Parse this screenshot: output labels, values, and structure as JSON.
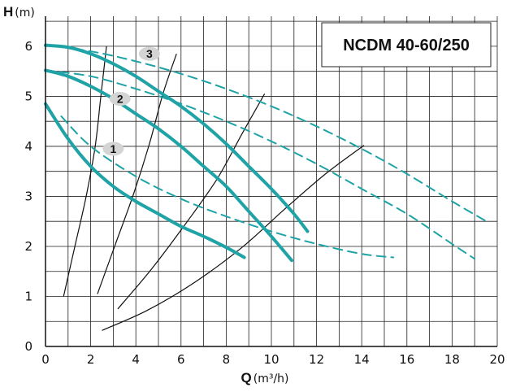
{
  "chart_data": {
    "type": "line",
    "title": "NCDM 40-60/250",
    "xaxis": {
      "letter": "Q",
      "unit": "(m³/h)",
      "range": [
        0,
        20
      ],
      "ticks": [
        "0",
        "2",
        "4",
        "6",
        "8",
        "10",
        "12",
        "14",
        "16",
        "18",
        "20"
      ]
    },
    "yaxis": {
      "letter": "H",
      "unit": "(m)",
      "range": [
        0,
        6.6
      ],
      "ticks": [
        "0",
        "1",
        "2",
        "3",
        "4",
        "5",
        "6"
      ]
    },
    "grid": true,
    "colors": {
      "pump": "#1fa3a6",
      "system": "#111111"
    },
    "series": [
      {
        "name": "1",
        "style": "solid",
        "x": [
          0,
          1,
          2,
          3,
          4,
          5,
          6,
          7,
          8,
          8.8
        ],
        "y": [
          4.85,
          4.15,
          3.6,
          3.2,
          2.9,
          2.65,
          2.4,
          2.2,
          1.98,
          1.78
        ]
      },
      {
        "name": "1",
        "style": "dashed",
        "x": [
          0.7,
          2,
          4,
          6,
          8,
          10,
          12,
          14,
          15.4
        ],
        "y": [
          4.6,
          4.0,
          3.4,
          2.95,
          2.6,
          2.3,
          2.05,
          1.85,
          1.78
        ]
      },
      {
        "name": "2",
        "style": "solid",
        "x": [
          0,
          1,
          2,
          3,
          4,
          5,
          6,
          7,
          8,
          9,
          10,
          10.9
        ],
        "y": [
          5.52,
          5.4,
          5.2,
          4.95,
          4.65,
          4.35,
          4.0,
          3.6,
          3.2,
          2.7,
          2.2,
          1.72
        ]
      },
      {
        "name": "2",
        "style": "dashed",
        "x": [
          0,
          2,
          4,
          6,
          8,
          10,
          12,
          14,
          16,
          18,
          19
        ],
        "y": [
          5.52,
          5.4,
          5.15,
          4.85,
          4.5,
          4.1,
          3.65,
          3.15,
          2.65,
          2.05,
          1.75
        ]
      },
      {
        "name": "3",
        "style": "solid",
        "x": [
          0,
          1,
          2,
          3,
          4,
          5,
          6,
          7,
          8,
          9,
          10,
          11,
          11.6
        ],
        "y": [
          6.02,
          5.98,
          5.85,
          5.65,
          5.4,
          5.1,
          4.8,
          4.45,
          4.05,
          3.6,
          3.15,
          2.65,
          2.3
        ]
      },
      {
        "name": "3",
        "style": "dashed",
        "x": [
          0,
          2,
          4,
          6,
          8,
          10,
          12,
          14,
          16,
          18,
          19.6
        ],
        "y": [
          6.02,
          5.9,
          5.7,
          5.45,
          5.15,
          4.8,
          4.4,
          3.95,
          3.45,
          2.9,
          2.48
        ]
      }
    ],
    "system_curves": [
      {
        "x": [
          0.8,
          1.3,
          1.8,
          2.2,
          2.45,
          2.7
        ],
        "y": [
          1.0,
          2.0,
          3.0,
          4.0,
          5.0,
          6.0
        ]
      },
      {
        "x": [
          2.3,
          3.1,
          3.9,
          4.6,
          5.2,
          5.8
        ],
        "y": [
          1.05,
          2.05,
          3.05,
          4.05,
          5.05,
          5.85
        ]
      },
      {
        "x": [
          3.2,
          4.7,
          6.2,
          7.6,
          8.7,
          9.7
        ],
        "y": [
          0.75,
          1.55,
          2.45,
          3.35,
          4.25,
          5.05
        ]
      },
      {
        "x": [
          2.5,
          4.5,
          6.6,
          8.7,
          10.6,
          12.4,
          14.1
        ],
        "y": [
          0.32,
          0.72,
          1.28,
          1.98,
          2.75,
          3.45,
          4.02
        ]
      }
    ],
    "labels": [
      {
        "text": "1",
        "x": 3.0,
        "y": 3.95
      },
      {
        "text": "2",
        "x": 3.3,
        "y": 4.95
      },
      {
        "text": "3",
        "x": 4.6,
        "y": 5.85
      }
    ]
  }
}
